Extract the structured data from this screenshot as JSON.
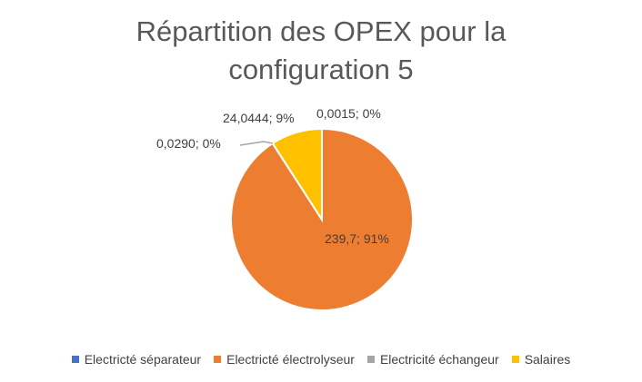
{
  "chart_data": {
    "type": "pie",
    "title_lines": [
      "Répartition des OPEX pour la",
      "configuration 5"
    ],
    "series": [
      {
        "name": "Electricté séparateur",
        "value": 0.0015,
        "label": "0,0015; 0%",
        "color": "#4472C4"
      },
      {
        "name": "Electricté électrolyseur",
        "value": 239.7,
        "label": "239,7; 91%",
        "color": "#ED7D31"
      },
      {
        "name": "Electricité échangeur",
        "value": 0.029,
        "label": "0,0290; 0%",
        "color": "#A5A5A5"
      },
      {
        "name": "Salaires",
        "value": 24.0444,
        "label": "24,0444; 9%",
        "color": "#FFC000"
      }
    ],
    "legend_position": "bottom"
  }
}
